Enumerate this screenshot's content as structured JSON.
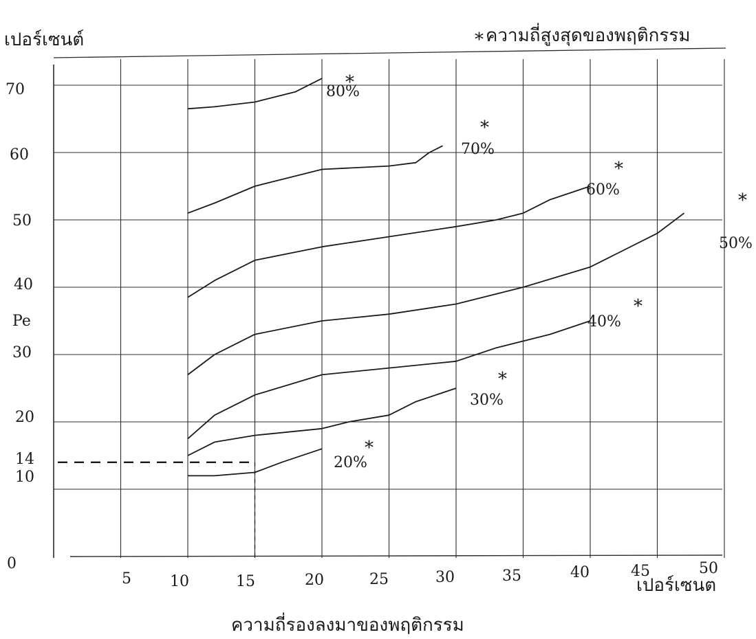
{
  "chart_data": {
    "type": "line",
    "title": "ความถี่สูงสุดของพฤติกรรม",
    "title_marker": "*",
    "ylabel": "เปอร์เซนต์",
    "xlabel_unit": "เปอร์เซนต",
    "xlabel": "ความถี่รองลงมาของพฤติกรรม",
    "pe_label": "Pe",
    "xlim": [
      0,
      50
    ],
    "ylim": [
      0,
      75
    ],
    "xticks": [
      "0",
      "5",
      "10",
      "15",
      "20",
      "25",
      "30",
      "35",
      "40",
      "45",
      "50"
    ],
    "yticks": [
      "10",
      "14",
      "20",
      "30",
      "40",
      "50",
      "60",
      "70"
    ],
    "grid": true,
    "series": [
      {
        "name": "20%",
        "x": [
          10,
          12,
          15,
          17,
          20
        ],
        "y": [
          12,
          12,
          12.5,
          14,
          16
        ]
      },
      {
        "name": "30%",
        "x": [
          10,
          12,
          15,
          20,
          22,
          25,
          27,
          30
        ],
        "y": [
          15,
          17,
          18,
          19,
          20,
          21,
          23,
          25
        ]
      },
      {
        "name": "40%",
        "x": [
          10,
          12,
          15,
          20,
          25,
          30,
          33,
          35,
          37,
          40
        ],
        "y": [
          17.5,
          21,
          24,
          27,
          28,
          29,
          31,
          32,
          33,
          35
        ]
      },
      {
        "name": "50%",
        "x": [
          10,
          12,
          15,
          20,
          25,
          30,
          35,
          40,
          42,
          45,
          47
        ],
        "y": [
          27,
          30,
          33,
          35,
          36,
          37.5,
          40,
          43,
          45,
          48,
          51
        ]
      },
      {
        "name": "60%",
        "x": [
          10,
          12,
          15,
          20,
          25,
          30,
          33,
          35,
          37,
          40
        ],
        "y": [
          38.5,
          41,
          44,
          46,
          47.5,
          49,
          50,
          51,
          53,
          55
        ]
      },
      {
        "name": "70%",
        "x": [
          10,
          12,
          15,
          20,
          25,
          27,
          28,
          29
        ],
        "y": [
          51,
          52.5,
          55,
          57.5,
          58,
          58.5,
          60,
          61
        ]
      },
      {
        "name": "80%",
        "x": [
          10,
          12,
          15,
          18,
          20
        ],
        "y": [
          66.5,
          66.8,
          67.5,
          69,
          71
        ]
      }
    ],
    "reference": {
      "x": 15,
      "y": 14
    },
    "annotation_marker": "*"
  }
}
